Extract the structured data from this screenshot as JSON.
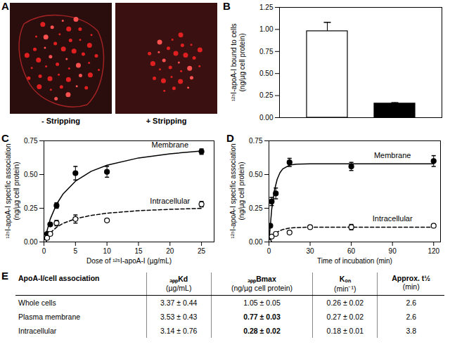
{
  "chart_data": [
    {
      "panel": "B",
      "type": "bar",
      "ylabel": "¹²⁵I-apoA-I bound to cells (ng/µg cell protein)",
      "categories": [
        null,
        null
      ],
      "values": [
        0.98,
        0.16
      ],
      "errors": [
        0.1,
        0.01
      ],
      "colors": [
        "#ffffff",
        "#000000"
      ],
      "ylim": [
        0,
        1.25
      ],
      "yticks": [
        {
          "value": 0,
          "label": "0.00"
        },
        0.25,
        {
          "value": 0.5,
          "label": "0.50"
        },
        0.75,
        {
          "value": 1,
          "label": "1.00"
        },
        1.25
      ],
      "tick_labels": "y"
    },
    {
      "panel": "C",
      "type": "line",
      "xlabel": "Dose of ¹²⁵I-apoA-I (µg/mL)",
      "ylabel": "¹²⁵I-apoA-I specific association (ng/µg cell protein)",
      "xlim": [
        0,
        27
      ],
      "xticks": [
        0,
        5,
        10,
        15,
        20,
        25
      ],
      "ylim": [
        0,
        0.75
      ],
      "yticks": [
        {
          "value": 0,
          "label": "0.00"
        },
        0.25,
        {
          "value": 0.5,
          "label": "0.50"
        },
        0.75
      ],
      "series": [
        {
          "name": "Membrane",
          "color": "#000000",
          "marker": "filled circle",
          "line_style": "solid",
          "x": [
            0,
            0.5,
            1,
            2,
            5,
            10,
            25
          ],
          "values": [
            0,
            0.06,
            0.13,
            0.27,
            0.51,
            0.52,
            0.67
          ],
          "errors": [
            0,
            0,
            0.01,
            0.02,
            0.05,
            0.04,
            0.02
          ],
          "fit_x": [
            0,
            1,
            2,
            3,
            5,
            7.5,
            10,
            15,
            20,
            25
          ],
          "fit_values": [
            0,
            0.17,
            0.28,
            0.354,
            0.451,
            0.524,
            0.569,
            0.623,
            0.654,
            0.675
          ]
        },
        {
          "name": "Intracellular",
          "color": "#000000",
          "marker": "open circle",
          "line_style": "dashed",
          "x": [
            0,
            0.5,
            1,
            2,
            5,
            10,
            25
          ],
          "values": [
            0,
            0.03,
            0.06,
            0.14,
            0.17,
            0.16,
            0.28
          ],
          "errors": [
            0,
            0,
            0.01,
            0.02,
            0.03,
            0.01,
            0.02
          ],
          "fit_x": [
            0,
            1,
            2,
            3,
            5,
            7.5,
            10,
            15,
            20,
            25
          ],
          "fit_values": [
            0,
            0.067,
            0.109,
            0.137,
            0.172,
            0.197,
            0.213,
            0.232,
            0.242,
            0.249
          ]
        }
      ]
    },
    {
      "panel": "D",
      "type": "line",
      "xlabel": "Time of incubation (min)",
      "ylabel": "¹²⁵I-apoA-I specific association (ng/µg cell protein)",
      "xlim": [
        0,
        125
      ],
      "xticks": [
        0,
        30,
        60,
        90,
        120
      ],
      "ylim": [
        0,
        0.75
      ],
      "yticks": [
        {
          "value": 0,
          "label": "0.00"
        },
        0.25,
        {
          "value": 0.5,
          "label": "0.50"
        },
        0.75
      ],
      "series": [
        {
          "name": "Membrane",
          "color": "#000000",
          "marker": "filled circle",
          "line_style": "solid",
          "x": [
            0,
            1,
            2,
            5,
            15,
            60,
            120
          ],
          "values": [
            0,
            0.12,
            0.3,
            0.36,
            0.59,
            0.56,
            0.6
          ],
          "errors": [
            0,
            0,
            0.03,
            0.04,
            0.03,
            0.03,
            0.04
          ],
          "fit_x": [
            0,
            2,
            4,
            6,
            8,
            10,
            15,
            20,
            30,
            60,
            90,
            120
          ],
          "fit_values": [
            0,
            0.242,
            0.383,
            0.465,
            0.513,
            0.541,
            0.57,
            0.577,
            0.58,
            0.58,
            0.58,
            0.58
          ]
        },
        {
          "name": "Intracellular",
          "color": "#000000",
          "marker": "open circle",
          "line_style": "dashed",
          "x": [
            0,
            2,
            5,
            15,
            30,
            60,
            120
          ],
          "values": [
            0,
            0.04,
            0.06,
            0.07,
            0.11,
            0.11,
            0.12
          ],
          "errors": [
            0,
            0,
            0.01,
            0.01,
            0.01,
            0.02,
            0.01
          ],
          "fit_x": [
            0,
            2,
            4,
            6,
            8,
            10,
            15,
            20,
            30,
            60,
            90,
            120
          ],
          "fit_values": [
            0,
            0.033,
            0.056,
            0.072,
            0.084,
            0.092,
            0.103,
            0.107,
            0.11,
            0.11,
            0.11,
            0.11
          ]
        }
      ]
    }
  ],
  "image_panel": {
    "panel": "A",
    "images": [
      {
        "label": "- Stripping"
      },
      {
        "label": "+ Stripping"
      }
    ]
  },
  "table": {
    "panel": "E",
    "header": [
      {
        "title": "ApoA-I/cell association"
      },
      {
        "title": "ₐₚₚKd",
        "unit": "(µg/mL)"
      },
      {
        "title": "ₐₚₚBmax",
        "unit": "(ng/µg  cell protein)"
      },
      {
        "title": "Kₒₙ",
        "unit": "(min⁻¹)"
      },
      {
        "title": "Approx. t½",
        "unit": "(min)"
      }
    ],
    "rows": [
      [
        "Whole cells",
        "3.37 ± 0.44",
        "1.05 ± 0.05",
        "0.26 ± 0.02",
        "2.6"
      ],
      [
        "Plasma membrane",
        "3.53 ± 0.43",
        {
          "text": "0.77 ± 0.03",
          "bold": true
        },
        "0.27 ± 0.02",
        "2.6"
      ],
      [
        "Intracellular",
        "3.14 ± 0.76",
        {
          "text": "0.28 ± 0.02",
          "bold": true
        },
        "0.18 ± 0.01",
        "3.8"
      ]
    ]
  }
}
